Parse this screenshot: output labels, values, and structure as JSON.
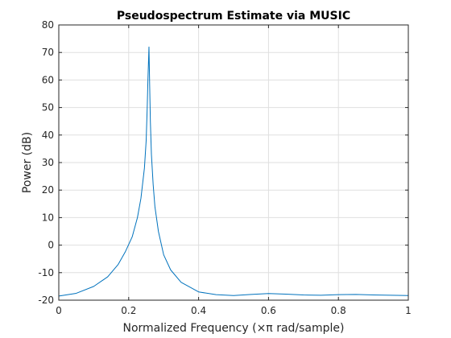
{
  "chart_data": {
    "type": "line",
    "title": "Pseudospectrum Estimate via MUSIC",
    "xlabel": "Normalized Frequency  (×π rad/sample)",
    "ylabel": "Power (dB)",
    "xlim": [
      0,
      1
    ],
    "ylim": [
      -20,
      80
    ],
    "xticks": [
      0,
      0.2,
      0.4,
      0.6,
      0.8,
      1
    ],
    "xtick_labels": [
      "0",
      "0.2",
      "0.4",
      "0.6",
      "0.8",
      "1"
    ],
    "yticks": [
      -20,
      -10,
      0,
      10,
      20,
      30,
      40,
      50,
      60,
      70,
      80
    ],
    "ytick_labels": [
      "-20",
      "-10",
      "0",
      "10",
      "20",
      "30",
      "40",
      "50",
      "60",
      "70",
      "80"
    ],
    "grid": true,
    "series": [
      {
        "color": "#0072bd",
        "x": [
          0,
          0.05,
          0.1,
          0.14,
          0.17,
          0.19,
          0.21,
          0.225,
          0.235,
          0.245,
          0.25,
          0.253,
          0.255,
          0.257,
          0.258,
          0.26,
          0.262,
          0.265,
          0.27,
          0.275,
          0.285,
          0.3,
          0.32,
          0.35,
          0.4,
          0.45,
          0.5,
          0.55,
          0.6,
          0.65,
          0.7,
          0.75,
          0.8,
          0.85,
          0.9,
          0.95,
          1.0
        ],
        "y": [
          -18.5,
          -17.5,
          -15.0,
          -11.5,
          -7.0,
          -2.5,
          3.0,
          10.0,
          17.0,
          28.0,
          38.0,
          50.0,
          60.0,
          68.0,
          72.0,
          58.0,
          45.0,
          33.0,
          22.0,
          14.0,
          5.0,
          -3.5,
          -9.0,
          -13.5,
          -17.0,
          -18.0,
          -18.3,
          -17.9,
          -17.6,
          -17.8,
          -18.1,
          -18.2,
          -18.0,
          -17.9,
          -18.1,
          -18.2,
          -18.3
        ]
      }
    ]
  }
}
